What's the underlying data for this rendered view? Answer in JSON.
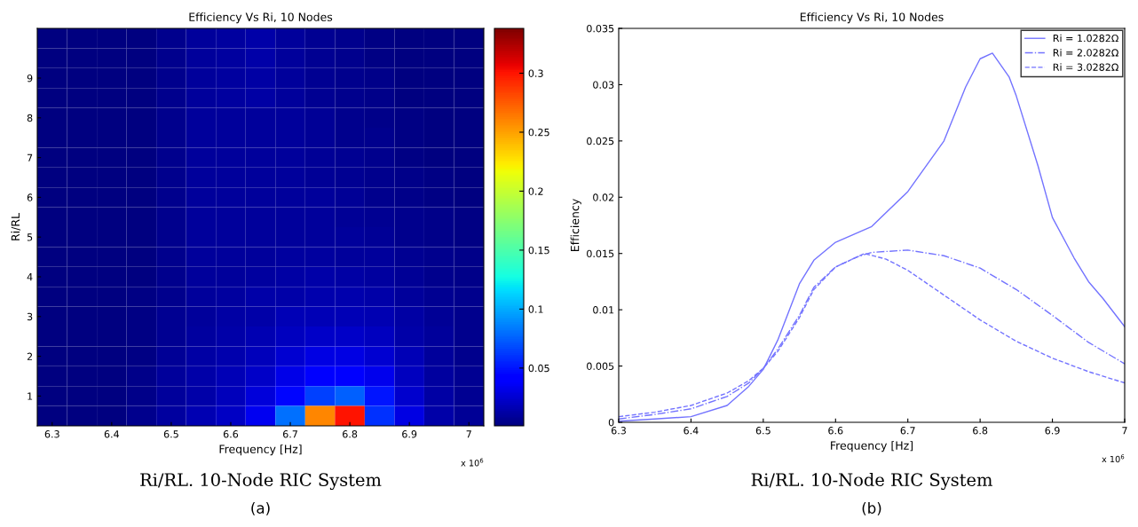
{
  "chart_data": [
    {
      "type": "heatmap",
      "title": "Efficiency Vs Ri, 10 Nodes",
      "xlabel": "Frequency [Hz]",
      "ylabel": "Ri/RL",
      "categories": [
        "6.3",
        null,
        "6.4",
        null,
        "6.5",
        null,
        "6.6",
        null,
        "6.7",
        null,
        "6.8",
        null,
        "6.9",
        null,
        "7"
      ],
      "y_categories": [
        null,
        null,
        "9",
        null,
        "8",
        null,
        "7",
        null,
        "6",
        null,
        "5",
        null,
        "4",
        null,
        "3",
        null,
        "2",
        null,
        "1",
        null
      ],
      "clim": [
        0.001,
        0.338
      ],
      "cticks": [
        0.05,
        0.1,
        0.15,
        0.2,
        0.25,
        0.3
      ],
      "cells": [
        [
          0.002,
          0.002,
          0.002,
          0.002,
          0.005,
          0.009,
          0.011,
          0.013,
          0.009,
          0.007,
          0.005,
          0.003,
          0.002,
          0.002,
          0.002
        ],
        [
          0.002,
          0.002,
          0.002,
          0.002,
          0.005,
          0.009,
          0.011,
          0.013,
          0.009,
          0.007,
          0.005,
          0.003,
          0.002,
          0.002,
          0.002
        ],
        [
          0.002,
          0.002,
          0.002,
          0.002,
          0.005,
          0.009,
          0.011,
          0.012,
          0.009,
          0.007,
          0.005,
          0.004,
          0.002,
          0.002,
          0.002
        ],
        [
          0.002,
          0.002,
          0.002,
          0.002,
          0.005,
          0.009,
          0.011,
          0.012,
          0.009,
          0.007,
          0.005,
          0.004,
          0.002,
          0.002,
          0.002
        ],
        [
          0.002,
          0.002,
          0.002,
          0.002,
          0.005,
          0.009,
          0.01,
          0.01,
          0.009,
          0.008,
          0.006,
          0.004,
          0.003,
          0.002,
          0.002
        ],
        [
          0.002,
          0.002,
          0.002,
          0.002,
          0.005,
          0.009,
          0.01,
          0.01,
          0.009,
          0.008,
          0.006,
          0.005,
          0.003,
          0.002,
          0.002
        ],
        [
          0.002,
          0.002,
          0.002,
          0.002,
          0.005,
          0.009,
          0.01,
          0.01,
          0.009,
          0.008,
          0.007,
          0.005,
          0.003,
          0.002,
          0.002
        ],
        [
          0.002,
          0.002,
          0.002,
          0.002,
          0.005,
          0.009,
          0.01,
          0.01,
          0.009,
          0.008,
          0.007,
          0.006,
          0.004,
          0.003,
          0.002
        ],
        [
          0.002,
          0.002,
          0.002,
          0.002,
          0.005,
          0.009,
          0.01,
          0.01,
          0.01,
          0.009,
          0.008,
          0.006,
          0.004,
          0.003,
          0.002
        ],
        [
          0.002,
          0.002,
          0.002,
          0.002,
          0.005,
          0.009,
          0.01,
          0.01,
          0.01,
          0.009,
          0.008,
          0.007,
          0.005,
          0.004,
          0.003
        ],
        [
          0.002,
          0.002,
          0.002,
          0.002,
          0.006,
          0.009,
          0.01,
          0.01,
          0.01,
          0.01,
          0.009,
          0.008,
          0.006,
          0.004,
          0.003
        ],
        [
          0.002,
          0.002,
          0.002,
          0.002,
          0.006,
          0.009,
          0.01,
          0.01,
          0.011,
          0.011,
          0.01,
          0.009,
          0.007,
          0.005,
          0.004
        ],
        [
          0.002,
          0.002,
          0.002,
          0.002,
          0.006,
          0.009,
          0.01,
          0.011,
          0.012,
          0.013,
          0.012,
          0.011,
          0.008,
          0.006,
          0.004
        ],
        [
          0.002,
          0.002,
          0.002,
          0.003,
          0.006,
          0.01,
          0.011,
          0.013,
          0.014,
          0.015,
          0.015,
          0.013,
          0.01,
          0.007,
          0.005
        ],
        [
          0.002,
          0.002,
          0.002,
          0.003,
          0.007,
          0.01,
          0.012,
          0.014,
          0.017,
          0.018,
          0.018,
          0.016,
          0.012,
          0.008,
          0.005
        ],
        [
          0.002,
          0.002,
          0.002,
          0.003,
          0.007,
          0.011,
          0.013,
          0.016,
          0.02,
          0.023,
          0.023,
          0.02,
          0.014,
          0.009,
          0.006
        ],
        [
          0.002,
          0.002,
          0.002,
          0.003,
          0.008,
          0.012,
          0.015,
          0.019,
          0.025,
          0.03,
          0.03,
          0.025,
          0.017,
          0.01,
          0.006
        ],
        [
          0.002,
          0.002,
          0.002,
          0.004,
          0.009,
          0.013,
          0.017,
          0.023,
          0.032,
          0.04,
          0.042,
          0.033,
          0.02,
          0.011,
          0.007
        ],
        [
          0.002,
          0.002,
          0.002,
          0.004,
          0.01,
          0.014,
          0.019,
          0.028,
          0.045,
          0.065,
          0.075,
          0.05,
          0.024,
          0.012,
          0.007
        ],
        [
          0.002,
          0.002,
          0.002,
          0.005,
          0.011,
          0.016,
          0.022,
          0.034,
          0.08,
          0.26,
          0.3,
          0.06,
          0.03,
          0.013,
          0.008
        ]
      ],
      "annotations": [
        "x 10$^{6}$",
        "Ri/RL. 10-Node RIC System",
        "(a)"
      ]
    },
    {
      "type": "line",
      "title": "Efficiency Vs Ri, 10 Nodes",
      "xlabel": "Frequency [Hz]",
      "ylabel": "Efficiency",
      "xlim": [
        6.3,
        7
      ],
      "xticks": [
        6.3,
        6.4,
        6.5,
        6.6,
        6.7,
        6.8,
        6.9,
        7
      ],
      "ylim": [
        0,
        0.035
      ],
      "yticks": [
        0,
        0.005,
        0.01,
        0.015,
        0.02,
        0.025,
        0.03,
        0.035
      ],
      "legend": "top right",
      "series": [
        {
          "name": "Ri = 1.0282Ω",
          "color": "#7373ff",
          "line_style": "solid",
          "x": [
            6.3,
            6.35,
            6.4,
            6.45,
            6.48,
            6.5,
            6.52,
            6.55,
            6.57,
            6.6,
            6.65,
            6.7,
            6.75,
            6.78,
            6.8,
            6.817,
            6.84,
            6.85,
            6.88,
            6.9,
            6.93,
            6.95,
            6.97,
            7.0
          ],
          "values": [
            0.0001,
            0.0003,
            0.0005,
            0.0015,
            0.0032,
            0.0047,
            0.0073,
            0.0123,
            0.0144,
            0.016,
            0.0174,
            0.0205,
            0.025,
            0.0298,
            0.0323,
            0.0328,
            0.0307,
            0.029,
            0.0228,
            0.0182,
            0.0146,
            0.0125,
            0.011,
            0.0085
          ]
        },
        {
          "name": "Ri = 2.0282Ω",
          "color": "#7373ff",
          "line_style": "dashdot",
          "x": [
            6.3,
            6.35,
            6.4,
            6.45,
            6.48,
            6.5,
            6.52,
            6.55,
            6.57,
            6.6,
            6.63,
            6.65,
            6.7,
            6.75,
            6.8,
            6.85,
            6.9,
            6.95,
            7.0
          ],
          "values": [
            0.0003,
            0.0007,
            0.0012,
            0.0023,
            0.0035,
            0.0048,
            0.0065,
            0.0095,
            0.012,
            0.0138,
            0.0147,
            0.0151,
            0.0153,
            0.0148,
            0.0137,
            0.0118,
            0.0095,
            0.0071,
            0.0052
          ]
        },
        {
          "name": "Ri = 3.0282Ω",
          "color": "#7373ff",
          "line_style": "dashed",
          "x": [
            6.3,
            6.35,
            6.4,
            6.45,
            6.48,
            6.5,
            6.52,
            6.55,
            6.57,
            6.6,
            6.64,
            6.67,
            6.7,
            6.75,
            6.8,
            6.85,
            6.9,
            6.95,
            7.0
          ],
          "values": [
            0.0005,
            0.0009,
            0.0015,
            0.0026,
            0.0037,
            0.0048,
            0.0063,
            0.0093,
            0.0118,
            0.0138,
            0.015,
            0.0145,
            0.0135,
            0.0113,
            0.0091,
            0.0072,
            0.0057,
            0.0045,
            0.0035
          ]
        }
      ],
      "annotations": [
        "x 10$^{6}$",
        "Ri/RL. 10-Node RIC System",
        "(b)"
      ]
    }
  ]
}
